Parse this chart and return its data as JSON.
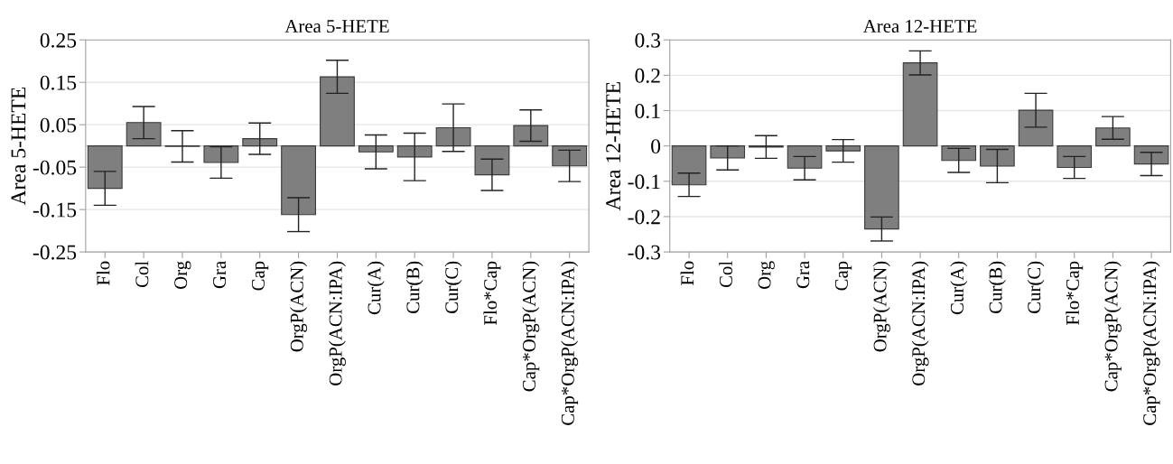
{
  "chart_data": [
    {
      "type": "bar",
      "title": "Area 5-HETE",
      "ylabel": "Area 5-HETE",
      "categories": [
        "Flo",
        "Col",
        "Org",
        "Gra",
        "Cap",
        "OrgP(ACN)",
        "OrgP(ACN:IPA)",
        "Cur(A)",
        "Cur(B)",
        "Cur(C)",
        "Flo*Cap",
        "Cap*OrgP(ACN)",
        "Cap*OrgP(ACN:IPA)"
      ],
      "values": [
        -0.1,
        0.055,
        -0.001,
        -0.039,
        0.017,
        -0.162,
        0.163,
        -0.014,
        -0.026,
        0.043,
        -0.068,
        0.048,
        -0.047
      ],
      "errors": [
        0.04,
        0.038,
        0.037,
        0.037,
        0.037,
        0.04,
        0.039,
        0.04,
        0.056,
        0.056,
        0.037,
        0.037,
        0.037
      ],
      "color": "#7f7f7f",
      "ylim": [
        -0.25,
        0.25
      ],
      "yticks": [
        -0.25,
        -0.15,
        -0.05,
        0.05,
        0.15,
        0.25
      ],
      "grid": "y",
      "ref_lines": [
        {
          "axis": "y",
          "value": 0,
          "label": null,
          "color": "#c8c8c8"
        }
      ]
    },
    {
      "type": "bar",
      "title": "Area 12-HETE",
      "ylabel": "Area 12-HETE",
      "categories": [
        "Flo",
        "Col",
        "Org",
        "Gra",
        "Cap",
        "OrgP(ACN)",
        "OrgP(ACN:IPA)",
        "Cur(A)",
        "Cur(B)",
        "Cur(C)",
        "Flo*Cap",
        "Cap*OrgP(ACN)",
        "Cap*OrgP(ACN:IPA)"
      ],
      "values": [
        -0.11,
        -0.034,
        -0.003,
        -0.063,
        -0.014,
        -0.235,
        0.235,
        -0.041,
        -0.057,
        0.101,
        -0.061,
        0.051,
        -0.051
      ],
      "errors": [
        0.033,
        0.034,
        0.032,
        0.033,
        0.032,
        0.034,
        0.034,
        0.034,
        0.047,
        0.048,
        0.031,
        0.032,
        0.033
      ],
      "color": "#7f7f7f",
      "ylim": [
        -0.3,
        0.3
      ],
      "yticks": [
        -0.3,
        -0.2,
        -0.1,
        0,
        0.1,
        0.2,
        0.3
      ],
      "grid": "y"
    }
  ]
}
